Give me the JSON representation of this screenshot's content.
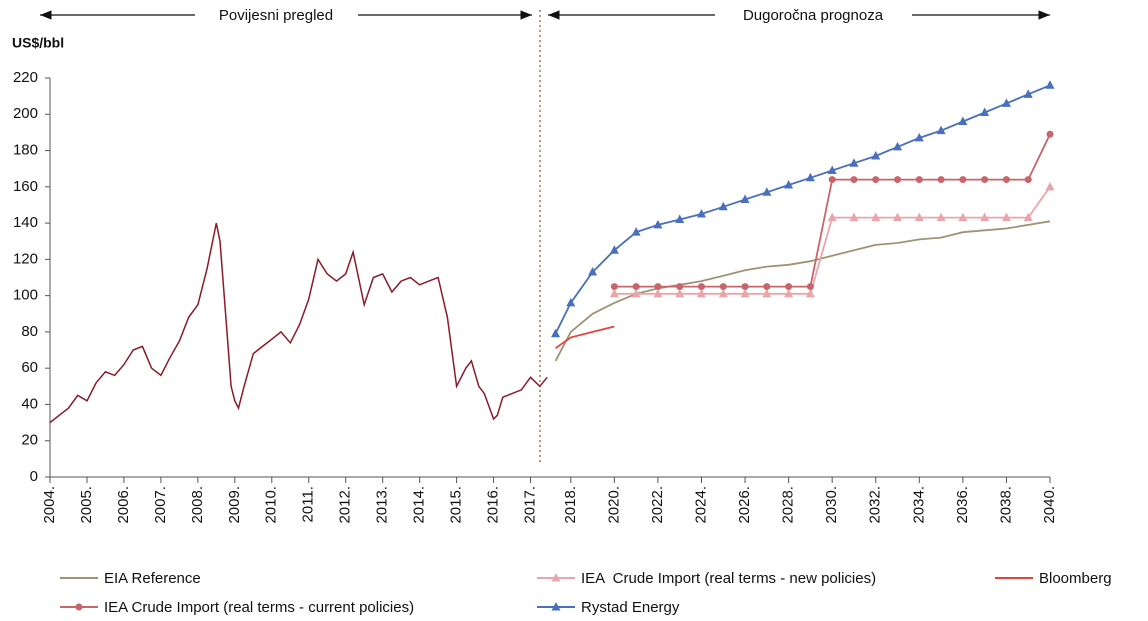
{
  "chart_data": [
    {
      "type": "line",
      "title": "Povijesni pregled",
      "ylabel": "US$/bbl",
      "color": "#8b1a2b",
      "xlim": [
        2004,
        2017.5
      ],
      "ylim": [
        0,
        220
      ],
      "yticks": [
        0,
        20,
        40,
        60,
        80,
        100,
        120,
        140,
        160,
        180,
        200,
        220
      ],
      "xticks": [
        {
          "value": 2004,
          "label": "2004."
        },
        {
          "value": 2005,
          "label": "2005."
        },
        {
          "value": 2006,
          "label": "2006."
        },
        {
          "value": 2007,
          "label": "2007."
        },
        {
          "value": 2008,
          "label": "2008."
        },
        {
          "value": 2009,
          "label": "2009."
        },
        {
          "value": 2010,
          "label": "2010."
        },
        {
          "value": 2011,
          "label": "2011."
        },
        {
          "value": 2012,
          "label": "2012."
        },
        {
          "value": 2013,
          "label": "2013."
        },
        {
          "value": 2014,
          "label": "2014."
        },
        {
          "value": 2015,
          "label": "2015."
        },
        {
          "value": 2016,
          "label": "2016."
        },
        {
          "value": 2017,
          "label": "2017."
        }
      ],
      "x": [
        2004.0,
        2004.25,
        2004.5,
        2004.75,
        2005.0,
        2005.25,
        2005.5,
        2005.75,
        2006.0,
        2006.25,
        2006.5,
        2006.75,
        2007.0,
        2007.25,
        2007.5,
        2007.75,
        2008.0,
        2008.25,
        2008.5,
        2008.6,
        2008.75,
        2008.9,
        2009.0,
        2009.1,
        2009.25,
        2009.5,
        2009.75,
        2010.0,
        2010.25,
        2010.5,
        2010.75,
        2011.0,
        2011.25,
        2011.5,
        2011.75,
        2012.0,
        2012.2,
        2012.5,
        2012.75,
        2013.0,
        2013.25,
        2013.5,
        2013.75,
        2014.0,
        2014.25,
        2014.5,
        2014.75,
        2015.0,
        2015.25,
        2015.4,
        2015.6,
        2015.75,
        2016.0,
        2016.1,
        2016.25,
        2016.5,
        2016.75,
        2017.0,
        2017.25,
        2017.45
      ],
      "values": [
        30,
        34,
        38,
        45,
        42,
        52,
        58,
        56,
        62,
        70,
        72,
        60,
        56,
        66,
        75,
        88,
        95,
        115,
        140,
        130,
        90,
        50,
        42,
        38,
        50,
        68,
        72,
        76,
        80,
        74,
        84,
        98,
        120,
        112,
        108,
        112,
        124,
        95,
        110,
        112,
        102,
        108,
        110,
        106,
        108,
        110,
        88,
        50,
        60,
        64,
        50,
        46,
        32,
        34,
        44,
        46,
        48,
        55,
        50,
        55
      ]
    },
    {
      "type": "line",
      "title": "Dugoročna prognoza",
      "xlim": [
        2017,
        2040
      ],
      "xticks": [
        {
          "value": 2018,
          "label": "2018."
        },
        {
          "value": 2020,
          "label": "2020."
        },
        {
          "value": 2022,
          "label": "2022."
        },
        {
          "value": 2024,
          "label": "2024."
        },
        {
          "value": 2026,
          "label": "2026."
        },
        {
          "value": 2028,
          "label": "2028."
        },
        {
          "value": 2030,
          "label": "2030."
        },
        {
          "value": 2032,
          "label": "2032."
        },
        {
          "value": 2034,
          "label": "2034."
        },
        {
          "value": 2036,
          "label": "2036."
        },
        {
          "value": 2038,
          "label": "2038."
        },
        {
          "value": 2040,
          "label": "2040."
        }
      ],
      "series": [
        {
          "name": "EIA Reference",
          "color": "#9e9373",
          "marker": "none",
          "x": [
            2017.3,
            2018,
            2019,
            2020,
            2021,
            2022,
            2023,
            2024,
            2025,
            2026,
            2027,
            2028,
            2029,
            2030,
            2031,
            2032,
            2033,
            2034,
            2035,
            2036,
            2037,
            2038,
            2039,
            2040
          ],
          "values": [
            64,
            80,
            90,
            96,
            101,
            104,
            106,
            108,
            111,
            114,
            116,
            117,
            119,
            122,
            125,
            128,
            129,
            131,
            132,
            135,
            136,
            137,
            139,
            141
          ]
        },
        {
          "name": "IEA  Crude Import (real terms - new policies)",
          "color": "#e8a6ab",
          "marker": "triangle",
          "x": [
            2020,
            2021,
            2022,
            2023,
            2024,
            2025,
            2026,
            2027,
            2028,
            2029,
            2030,
            2031,
            2032,
            2033,
            2034,
            2035,
            2036,
            2037,
            2038,
            2039,
            2040
          ],
          "values": [
            101,
            101,
            101,
            101,
            101,
            101,
            101,
            101,
            101,
            101,
            143,
            143,
            143,
            143,
            143,
            143,
            143,
            143,
            143,
            143,
            160
          ]
        },
        {
          "name": "Bloomberg",
          "color": "#e8413a",
          "marker": "none",
          "x": [
            2017.3,
            2018,
            2019,
            2020
          ],
          "values": [
            71,
            77,
            80,
            83
          ]
        },
        {
          "name": "IEA Crude Import (real terms - current policies)",
          "color": "#c8656b",
          "marker": "circle",
          "x": [
            2020,
            2021,
            2022,
            2023,
            2024,
            2025,
            2026,
            2027,
            2028,
            2029,
            2030,
            2031,
            2032,
            2033,
            2034,
            2035,
            2036,
            2037,
            2038,
            2039,
            2040
          ],
          "values": [
            105,
            105,
            105,
            105,
            105,
            105,
            105,
            105,
            105,
            105,
            164,
            164,
            164,
            164,
            164,
            164,
            164,
            164,
            164,
            164,
            189
          ]
        },
        {
          "name": "Rystad Energy",
          "color": "#4a6fbf",
          "marker": "triangle",
          "x": [
            2017.3,
            2018,
            2019,
            2020,
            2021,
            2022,
            2023,
            2024,
            2025,
            2026,
            2027,
            2028,
            2029,
            2030,
            2031,
            2032,
            2033,
            2034,
            2035,
            2036,
            2037,
            2038,
            2039,
            2040
          ],
          "values": [
            79,
            96,
            113,
            125,
            135,
            139,
            142,
            145,
            149,
            153,
            157,
            161,
            165,
            169,
            173,
            177,
            182,
            187,
            191,
            196,
            201,
            206,
            211,
            216
          ]
        }
      ]
    }
  ]
}
